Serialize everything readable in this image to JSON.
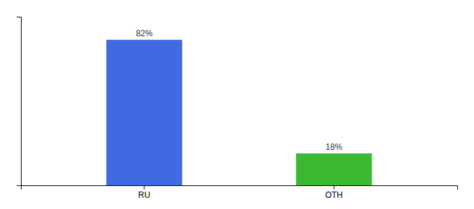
{
  "chart_data": {
    "type": "bar",
    "categories": [
      "RU",
      "OTH"
    ],
    "values": [
      82,
      18
    ],
    "colors": [
      "#4169e1",
      "#3cb832"
    ],
    "value_labels": [
      "82%",
      "18%"
    ],
    "data_labels": true,
    "ylim": [
      0,
      95
    ],
    "yticks": [],
    "tick_labels": "x",
    "grid": false
  }
}
